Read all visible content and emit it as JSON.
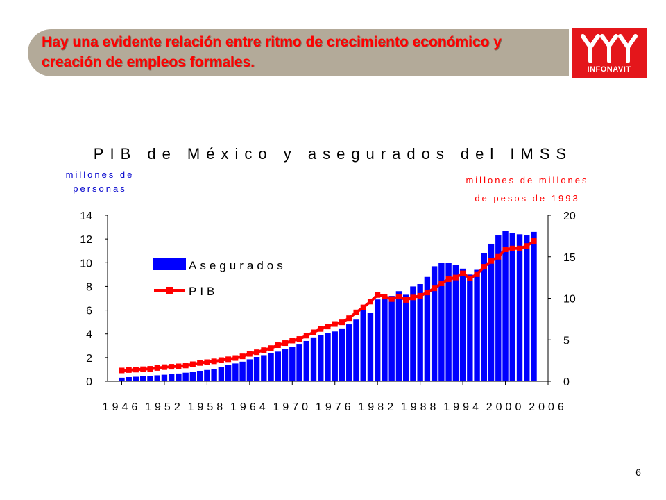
{
  "slide": {
    "title": "Hay una evidente relación entre ritmo de crecimiento económico y creación de empleos formales.",
    "page_number": "6",
    "logo_text": "INFONAVIT"
  },
  "colors": {
    "banner": "#b3aa99",
    "title_text": "#ff0000",
    "bars": "#0000ff",
    "line": "#ff0000",
    "logo_bg": "#e4161b"
  },
  "chart_data": {
    "type": "bar+line",
    "title": "PIB de México y asegurados del IMSS",
    "ylabel_left": "millones de personas",
    "ylabel_right": "millones de millones de pesos de 1993",
    "ylim_left": [
      0,
      14
    ],
    "ylim_right": [
      0,
      20
    ],
    "yticks_left": [
      "0",
      "2",
      "4",
      "6",
      "8",
      "10",
      "12",
      "14"
    ],
    "yticks_right": [
      "0",
      "5",
      "10",
      "15",
      "20"
    ],
    "xticks": [
      "1946",
      "1952",
      "1958",
      "1964",
      "1970",
      "1976",
      "1982",
      "1988",
      "1994",
      "2000",
      "2006"
    ],
    "legend_position": "upper-left",
    "x": [
      1946,
      1947,
      1948,
      1949,
      1950,
      1951,
      1952,
      1953,
      1954,
      1955,
      1956,
      1957,
      1958,
      1959,
      1960,
      1961,
      1962,
      1963,
      1964,
      1965,
      1966,
      1967,
      1968,
      1969,
      1970,
      1971,
      1972,
      1973,
      1974,
      1975,
      1976,
      1977,
      1978,
      1979,
      1980,
      1981,
      1982,
      1983,
      1984,
      1985,
      1986,
      1987,
      1988,
      1989,
      1990,
      1991,
      1992,
      1993,
      1994,
      1995,
      1996,
      1997,
      1998,
      1999,
      2000,
      2001,
      2002,
      2003,
      2004
    ],
    "series": [
      {
        "name": "Asegurados",
        "type": "bar",
        "axis": "left",
        "values": [
          0.3,
          0.35,
          0.38,
          0.42,
          0.45,
          0.5,
          0.55,
          0.6,
          0.65,
          0.72,
          0.8,
          0.88,
          0.95,
          1.05,
          1.2,
          1.35,
          1.5,
          1.65,
          1.85,
          2.05,
          2.2,
          2.35,
          2.5,
          2.7,
          2.9,
          3.1,
          3.4,
          3.7,
          3.9,
          4.1,
          4.2,
          4.4,
          4.8,
          5.2,
          6.0,
          5.8,
          6.9,
          7.0,
          7.2,
          7.6,
          7.3,
          8.0,
          8.2,
          8.8,
          9.7,
          10.0,
          10.0,
          9.8,
          9.5,
          9.0,
          9.4,
          10.8,
          11.6,
          12.3,
          12.7,
          12.5,
          12.4,
          12.3,
          12.6
        ]
      },
      {
        "name": "PIB",
        "type": "line",
        "axis": "right",
        "values": [
          1.3,
          1.35,
          1.4,
          1.45,
          1.5,
          1.6,
          1.7,
          1.75,
          1.8,
          1.9,
          2.05,
          2.2,
          2.3,
          2.4,
          2.55,
          2.65,
          2.8,
          3.0,
          3.3,
          3.5,
          3.75,
          4.0,
          4.35,
          4.6,
          4.9,
          5.1,
          5.5,
          5.9,
          6.3,
          6.6,
          6.9,
          7.1,
          7.6,
          8.3,
          8.9,
          9.6,
          10.4,
          10.2,
          9.9,
          10.2,
          9.8,
          10.1,
          10.3,
          10.7,
          11.2,
          11.8,
          12.3,
          12.5,
          13.0,
          12.4,
          12.9,
          13.8,
          14.5,
          15.0,
          15.9,
          16.0,
          16.0,
          16.3,
          16.9
        ]
      }
    ]
  }
}
